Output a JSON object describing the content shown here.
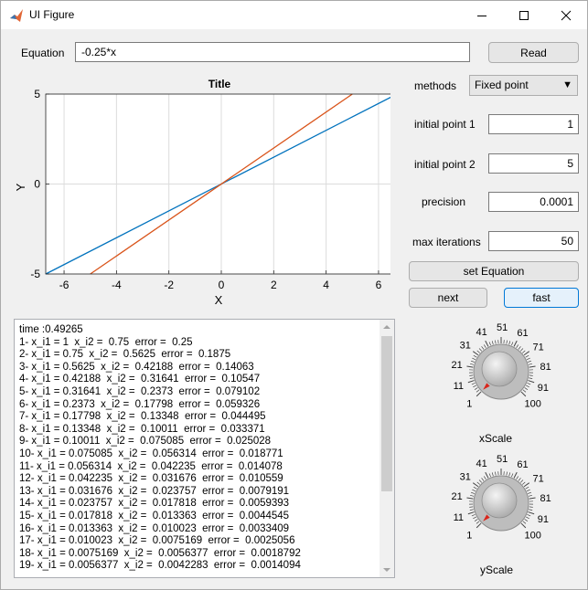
{
  "window": {
    "title": "UI Figure"
  },
  "equation": {
    "label": "Equation",
    "value": "-0.25*x",
    "read_button": "Read"
  },
  "axes": {
    "title": "Title",
    "xlabel": "X",
    "ylabel": "Y",
    "xticks": [
      "-6",
      "-4",
      "-2",
      "0",
      "2",
      "4",
      "6"
    ],
    "yticks": [
      "5",
      "0",
      "-5"
    ]
  },
  "chart_data": {
    "type": "line",
    "title": "Title",
    "xlabel": "X",
    "ylabel": "Y",
    "xlim": [
      -6.7,
      6.7
    ],
    "ylim": [
      -5,
      5
    ],
    "xticks": [
      -6,
      -4,
      -2,
      0,
      2,
      4,
      6
    ],
    "yticks": [
      -5,
      0,
      5
    ],
    "grid": true,
    "series": [
      {
        "color": "#0072bd",
        "x": [
          -6.7,
          6.7
        ],
        "y": [
          -5.0,
          5.0
        ]
      },
      {
        "color": "#d95319",
        "x": [
          -5.0,
          5.0
        ],
        "y": [
          -5.0,
          5.0
        ]
      }
    ]
  },
  "params": {
    "methods_label": "methods",
    "method_selected": "Fixed point",
    "initial_point_1_label": "initial point 1",
    "initial_point_1_value": "1",
    "initial_point_2_label": "initial point 2",
    "initial_point_2_value": "5",
    "precision_label": "precision",
    "precision_value": "0.0001",
    "max_iterations_label": "max iterations",
    "max_iterations_value": "50"
  },
  "buttons": {
    "set_equation": "set Equation",
    "next": "next",
    "fast": "fast"
  },
  "output": {
    "lines": [
      "time :0.49265",
      "1- x_i1 = 1  x_i2 =  0.75  error =  0.25",
      "2- x_i1 = 0.75  x_i2 =  0.5625  error =  0.1875",
      "3- x_i1 = 0.5625  x_i2 =  0.42188  error =  0.14063",
      "4- x_i1 = 0.42188  x_i2 =  0.31641  error =  0.10547",
      "5- x_i1 = 0.31641  x_i2 =  0.2373  error =  0.079102",
      "6- x_i1 = 0.2373  x_i2 =  0.17798  error =  0.059326",
      "7- x_i1 = 0.17798  x_i2 =  0.13348  error =  0.044495",
      "8- x_i1 = 0.13348  x_i2 =  0.10011  error =  0.033371",
      "9- x_i1 = 0.10011  x_i2 =  0.075085  error =  0.025028",
      "10- x_i1 = 0.075085  x_i2 =  0.056314  error =  0.018771",
      "11- x_i1 = 0.056314  x_i2 =  0.042235  error =  0.014078",
      "12- x_i1 = 0.042235  x_i2 =  0.031676  error =  0.010559",
      "13- x_i1 = 0.031676  x_i2 =  0.023757  error =  0.0079191",
      "14- x_i1 = 0.023757  x_i2 =  0.017818  error =  0.0059393",
      "15- x_i1 = 0.017818  x_i2 =  0.013363  error =  0.0044545",
      "16- x_i1 = 0.013363  x_i2 =  0.010023  error =  0.0033409",
      "17- x_i1 = 0.010023  x_i2 =  0.0075169  error =  0.0025056",
      "18- x_i1 = 0.0075169  x_i2 =  0.0056377  error =  0.0018792",
      "19- x_i1 = 0.0056377  x_i2 =  0.0042283  error =  0.0014094"
    ]
  },
  "knobs": {
    "ticks": [
      "1",
      "11",
      "21",
      "31",
      "41",
      "51",
      "61",
      "71",
      "81",
      "91",
      "100"
    ],
    "xscale": {
      "label": "xScale",
      "value": 1
    },
    "yscale": {
      "label": "yScale",
      "value": 1
    }
  }
}
